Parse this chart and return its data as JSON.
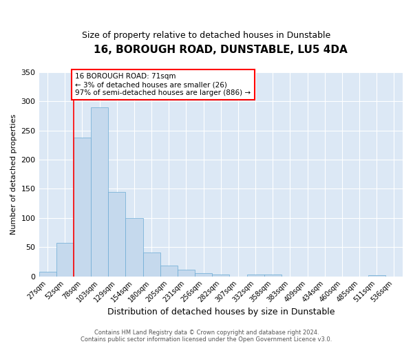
{
  "title": "16, BOROUGH ROAD, DUNSTABLE, LU5 4DA",
  "subtitle": "Size of property relative to detached houses in Dunstable",
  "xlabel": "Distribution of detached houses by size in Dunstable",
  "ylabel": "Number of detached properties",
  "bar_labels": [
    "27sqm",
    "52sqm",
    "78sqm",
    "103sqm",
    "129sqm",
    "154sqm",
    "180sqm",
    "205sqm",
    "231sqm",
    "256sqm",
    "282sqm",
    "307sqm",
    "332sqm",
    "358sqm",
    "383sqm",
    "409sqm",
    "434sqm",
    "460sqm",
    "485sqm",
    "511sqm",
    "536sqm"
  ],
  "bar_values": [
    8,
    57,
    238,
    290,
    145,
    100,
    41,
    19,
    11,
    5,
    3,
    0,
    3,
    3,
    0,
    0,
    0,
    0,
    0,
    2,
    0
  ],
  "bar_color": "#c5d9ed",
  "bar_edge_color": "#6aaad4",
  "background_color": "#dce8f5",
  "ylim": [
    0,
    350
  ],
  "yticks": [
    0,
    50,
    100,
    150,
    200,
    250,
    300,
    350
  ],
  "red_line_x": 1.5,
  "annotation_line1": "16 BOROUGH ROAD: 71sqm",
  "annotation_line2": "← 3% of detached houses are smaller (26)",
  "annotation_line3": "97% of semi-detached houses are larger (886) →",
  "footer_line1": "Contains HM Land Registry data © Crown copyright and database right 2024.",
  "footer_line2": "Contains public sector information licensed under the Open Government Licence v3.0."
}
